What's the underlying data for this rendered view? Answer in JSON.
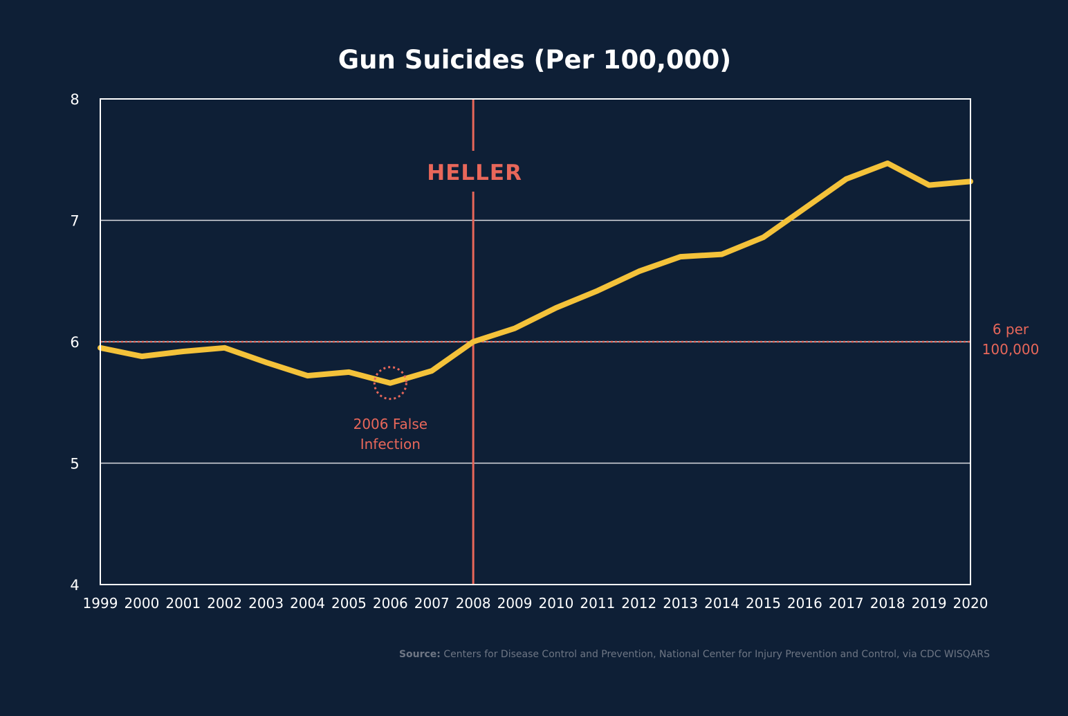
{
  "chart_data": {
    "type": "line",
    "title": "Gun Suicides (Per 100,000)",
    "x": [
      "1999",
      "2000",
      "2001",
      "2002",
      "2003",
      "2004",
      "2005",
      "2006",
      "2007",
      "2008",
      "2009",
      "2010",
      "2011",
      "2012",
      "2013",
      "2014",
      "2015",
      "2016",
      "2017",
      "2018",
      "2019",
      "2020"
    ],
    "series": [
      {
        "values": [
          5.95,
          5.88,
          5.92,
          5.95,
          5.83,
          5.72,
          5.75,
          5.66,
          5.76,
          6.0,
          6.11,
          6.28,
          6.42,
          6.58,
          6.7,
          6.72,
          6.86,
          7.1,
          7.34,
          7.47,
          7.29,
          7.32
        ]
      }
    ],
    "ylim": [
      4,
      8
    ],
    "yticks": [
      4,
      5,
      6,
      7,
      8
    ],
    "grid": true,
    "colors": {
      "line": "#f4c23a",
      "accent": "#e8675a",
      "grid": "#ffffff",
      "background": "#0e1f36"
    },
    "annotations": {
      "heller": {
        "label": "HELLER",
        "x": "2008"
      },
      "reference": {
        "value": 6,
        "label_line1": "6 per",
        "label_line2": "100,000"
      },
      "highlight": {
        "x": "2006",
        "y": 5.66,
        "label_line1": "2006 False",
        "label_line2": "Infection"
      }
    }
  },
  "source": {
    "label": "Source:",
    "text": " Centers for Disease Control and Prevention, National Center for Injury Prevention and Control, via CDC WISQARS"
  }
}
